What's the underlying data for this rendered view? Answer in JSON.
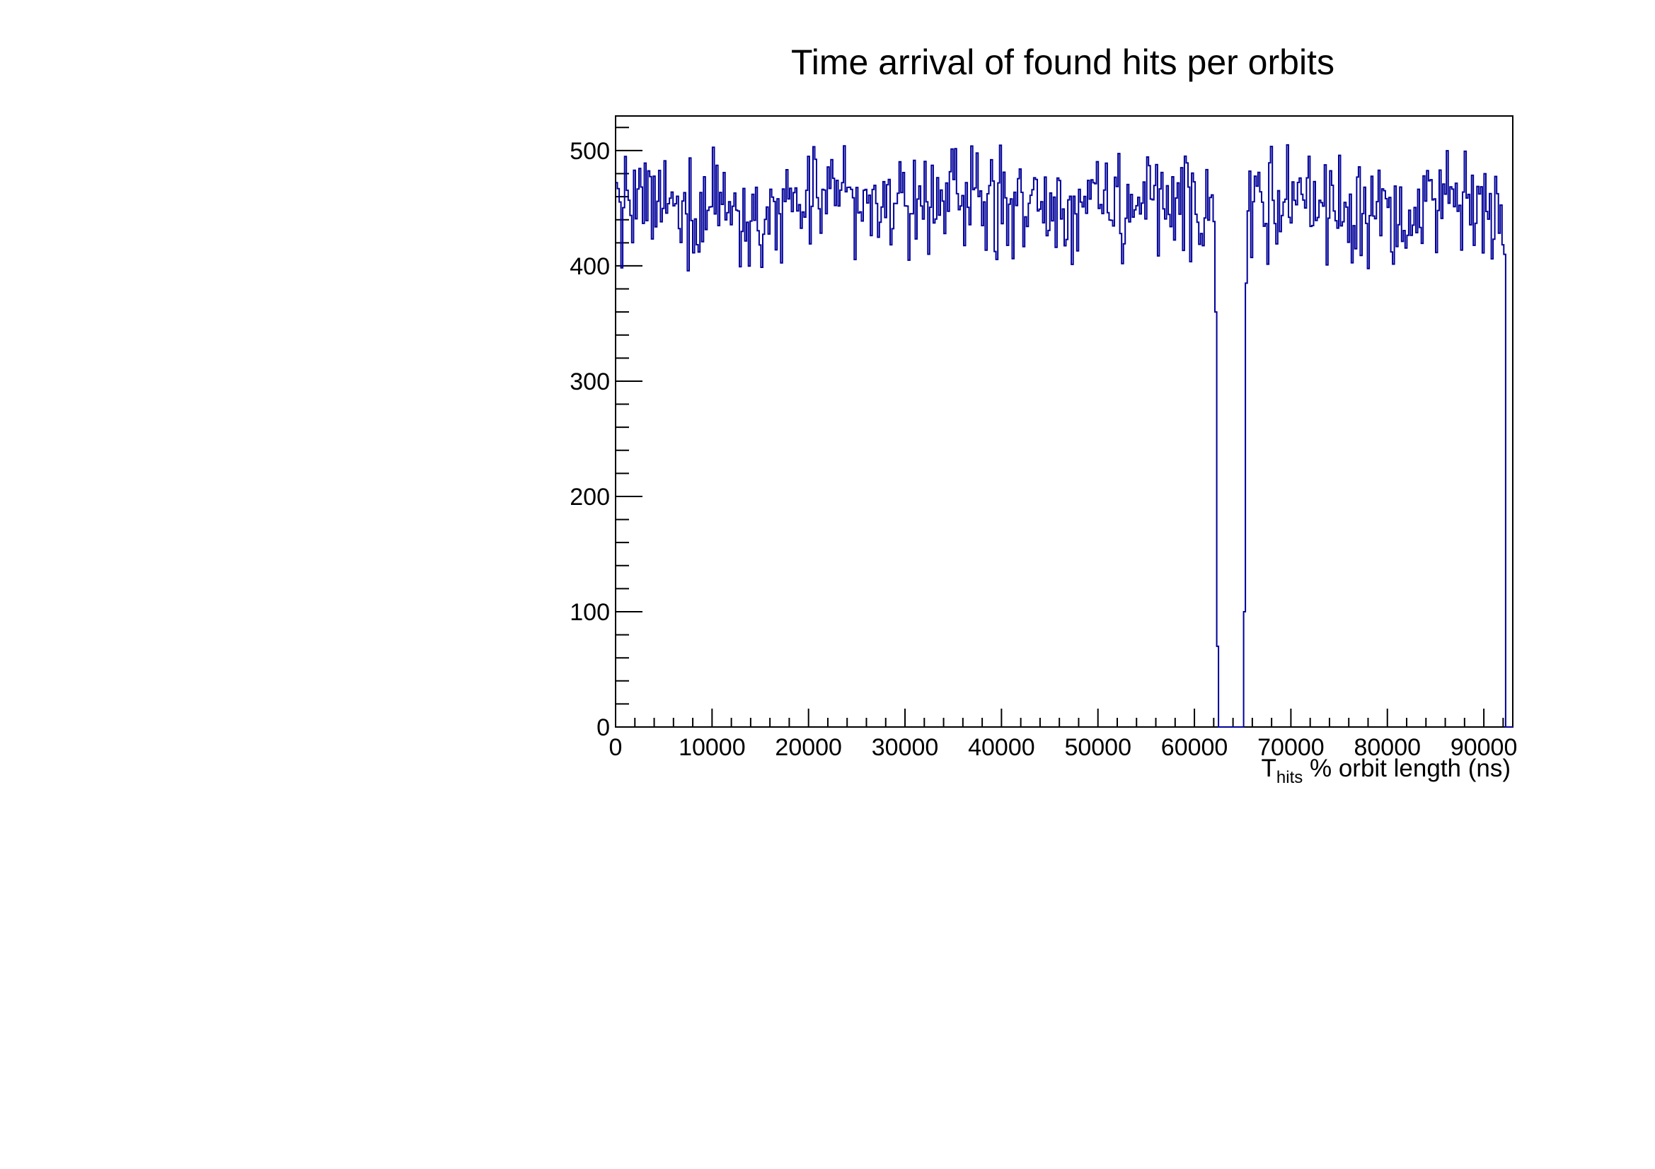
{
  "chart_data": {
    "type": "histogram",
    "title": "Time arrival of found hits per orbits",
    "xlabel_main": "T",
    "xlabel_sub": "hits",
    "xlabel_rest": " % orbit length (ns)",
    "ylabel": "",
    "xlim": [
      0,
      93000
    ],
    "ylim": [
      0,
      530
    ],
    "x_ticks": [
      0,
      10000,
      20000,
      30000,
      40000,
      50000,
      60000,
      70000,
      80000,
      90000
    ],
    "y_ticks": [
      0,
      100,
      200,
      300,
      400,
      500
    ],
    "grid": false,
    "legend": "none",
    "line_color": "#000099",
    "bin_width": 186,
    "gap_start_x": 62000,
    "gap_end_x": 65400,
    "end_x": 92000,
    "plateau_mean": 453,
    "plateau_low": 395,
    "plateau_high": 505
  }
}
